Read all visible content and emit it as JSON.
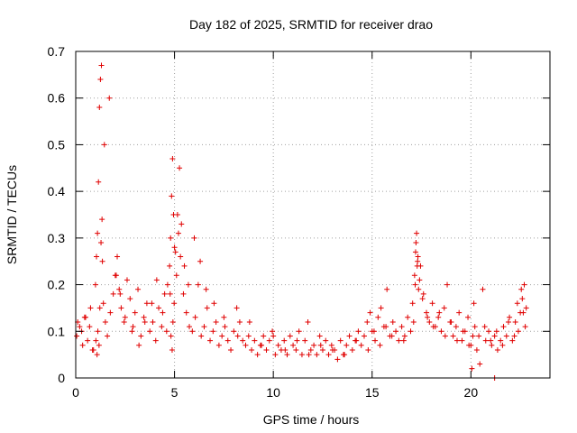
{
  "chart_data": {
    "type": "scatter",
    "title": "Day 182 of 2025, SRMTID for receiver drao",
    "xlabel": "GPS time / hours",
    "ylabel": "SRMTID / TECUs",
    "xlim": [
      0,
      24
    ],
    "ylim": [
      0,
      0.7
    ],
    "xticks": [
      0,
      5,
      10,
      15,
      20
    ],
    "yticks": [
      0,
      0.1,
      0.2,
      0.3,
      0.4,
      0.5,
      0.6,
      0.7
    ],
    "xtick_labels": [
      "0",
      "5",
      "10",
      "15",
      "20"
    ],
    "ytick_labels": [
      "0",
      "0.1",
      "0.2",
      "0.3",
      "0.4",
      "0.5",
      "0.6",
      "0.7"
    ],
    "grid": true,
    "marker": "+",
    "color": "#e00000",
    "series": [
      {
        "name": "SRMTID",
        "x": [
          0.05,
          0.2,
          0.35,
          0.5,
          0.6,
          0.75,
          0.9,
          1.0,
          1.05,
          1.1,
          1.15,
          1.2,
          1.25,
          1.3,
          1.35,
          1.4,
          1.5,
          1.6,
          1.75,
          1.9,
          2.0,
          2.1,
          2.2,
          2.3,
          2.45,
          2.6,
          2.75,
          2.9,
          3.0,
          3.15,
          3.3,
          3.45,
          3.6,
          3.75,
          3.9,
          4.05,
          4.2,
          4.35,
          4.5,
          4.65,
          4.75,
          4.8,
          4.85,
          4.9,
          4.95,
          5.0,
          5.1,
          5.2,
          5.3,
          5.45,
          5.6,
          5.75,
          5.9,
          6.05,
          6.2,
          6.35,
          6.5,
          6.65,
          6.8,
          6.95,
          7.1,
          7.25,
          7.4,
          7.55,
          7.7,
          7.85,
          8.0,
          8.15,
          8.3,
          8.45,
          8.6,
          8.75,
          8.9,
          9.05,
          9.2,
          9.35,
          9.5,
          9.65,
          9.8,
          9.95,
          10.1,
          10.25,
          10.4,
          10.55,
          10.7,
          10.85,
          11.0,
          11.15,
          11.3,
          11.45,
          11.6,
          11.75,
          11.9,
          12.05,
          12.2,
          12.35,
          12.5,
          12.65,
          12.8,
          12.95,
          13.1,
          13.25,
          13.4,
          13.55,
          13.7,
          13.85,
          14.0,
          14.15,
          14.3,
          14.45,
          14.6,
          14.75,
          14.9,
          15.0,
          15.15,
          15.3,
          15.45,
          15.6,
          15.75,
          15.9,
          16.05,
          16.2,
          16.35,
          16.5,
          16.65,
          16.8,
          16.95,
          17.05,
          17.15,
          17.2,
          17.25,
          17.3,
          17.35,
          17.45,
          17.6,
          17.75,
          17.9,
          18.05,
          18.2,
          18.35,
          18.5,
          18.65,
          18.8,
          18.95,
          19.1,
          19.25,
          19.4,
          19.55,
          19.7,
          19.85,
          20.0,
          20.1,
          20.2,
          20.3,
          20.45,
          20.6,
          20.75,
          20.9,
          21.05,
          21.2,
          21.35,
          21.5,
          21.65,
          21.8,
          21.95,
          22.1,
          22.25,
          22.4,
          22.5,
          22.6,
          22.7,
          22.8,
          0.1,
          0.3,
          0.45,
          0.7,
          0.85,
          1.02,
          1.08,
          1.12,
          1.18,
          1.22,
          1.28,
          1.33,
          1.45,
          1.7,
          2.05,
          2.25,
          2.5,
          2.85,
          3.2,
          3.5,
          3.85,
          4.1,
          4.4,
          4.6,
          4.78,
          4.82,
          4.88,
          4.92,
          4.98,
          5.05,
          5.15,
          5.25,
          5.35,
          5.5,
          5.7,
          6.0,
          6.3,
          6.6,
          7.0,
          7.5,
          8.2,
          8.8,
          9.4,
          10.0,
          10.6,
          11.2,
          11.8,
          12.4,
          13.0,
          13.6,
          14.2,
          14.8,
          15.1,
          15.4,
          15.7,
          16.0,
          16.6,
          17.1,
          17.18,
          17.22,
          17.28,
          17.32,
          17.4,
          17.55,
          17.8,
          18.1,
          18.4,
          18.7,
          19.0,
          19.3,
          19.6,
          19.9,
          20.05,
          20.15,
          20.4,
          20.7,
          21.0,
          21.2,
          21.3,
          21.6,
          21.9,
          22.2,
          22.35,
          22.55,
          22.65,
          22.75
        ],
        "y": [
          0.09,
          0.11,
          0.07,
          0.13,
          0.08,
          0.15,
          0.06,
          0.2,
          0.26,
          0.31,
          0.42,
          0.58,
          0.64,
          0.67,
          0.25,
          0.16,
          0.12,
          0.09,
          0.14,
          0.18,
          0.22,
          0.26,
          0.19,
          0.15,
          0.12,
          0.21,
          0.17,
          0.11,
          0.14,
          0.19,
          0.09,
          0.13,
          0.16,
          0.1,
          0.12,
          0.08,
          0.15,
          0.11,
          0.18,
          0.2,
          0.24,
          0.3,
          0.39,
          0.47,
          0.35,
          0.28,
          0.22,
          0.31,
          0.26,
          0.18,
          0.14,
          0.11,
          0.1,
          0.13,
          0.2,
          0.09,
          0.11,
          0.15,
          0.08,
          0.1,
          0.12,
          0.07,
          0.09,
          0.11,
          0.08,
          0.06,
          0.1,
          0.15,
          0.12,
          0.08,
          0.07,
          0.09,
          0.06,
          0.08,
          0.05,
          0.07,
          0.09,
          0.06,
          0.08,
          0.1,
          0.05,
          0.07,
          0.06,
          0.08,
          0.05,
          0.09,
          0.07,
          0.06,
          0.1,
          0.05,
          0.08,
          0.12,
          0.06,
          0.07,
          0.05,
          0.09,
          0.06,
          0.08,
          0.05,
          0.07,
          0.06,
          0.04,
          0.08,
          0.05,
          0.07,
          0.09,
          0.06,
          0.08,
          0.1,
          0.07,
          0.09,
          0.12,
          0.14,
          0.1,
          0.08,
          0.13,
          0.15,
          0.11,
          0.19,
          0.09,
          0.12,
          0.1,
          0.08,
          0.11,
          0.09,
          0.13,
          0.1,
          0.16,
          0.22,
          0.27,
          0.31,
          0.25,
          0.19,
          0.24,
          0.18,
          0.14,
          0.12,
          0.16,
          0.11,
          0.13,
          0.1,
          0.15,
          0.2,
          0.12,
          0.09,
          0.11,
          0.14,
          0.08,
          0.1,
          0.13,
          0.07,
          0.09,
          0.11,
          0.06,
          0.03,
          0.19,
          0.08,
          0.1,
          0.07,
          0.09,
          0.06,
          0.08,
          0.11,
          0.09,
          0.13,
          0.08,
          0.12,
          0.1,
          0.14,
          0.17,
          0.2,
          0.15,
          0.12,
          0.1,
          0.13,
          0.11,
          0.06,
          0.08,
          0.05,
          0.1,
          0.07,
          0.15,
          0.29,
          0.34,
          0.5,
          0.6,
          0.22,
          0.18,
          0.13,
          0.1,
          0.07,
          0.12,
          0.16,
          0.21,
          0.14,
          0.1,
          0.18,
          0.09,
          0.06,
          0.12,
          0.16,
          0.27,
          0.35,
          0.45,
          0.33,
          0.24,
          0.2,
          0.3,
          0.25,
          0.19,
          0.16,
          0.13,
          0.09,
          0.12,
          0.07,
          0.09,
          0.06,
          0.08,
          0.05,
          0.07,
          0.06,
          0.05,
          0.08,
          0.06,
          0.1,
          0.07,
          0.11,
          0.09,
          0.08,
          0.12,
          0.2,
          0.29,
          0.24,
          0.26,
          0.21,
          0.17,
          0.13,
          0.11,
          0.14,
          0.09,
          0.12,
          0.08,
          0.1,
          0.07,
          0.02,
          0.16,
          0.09,
          0.11,
          0.08,
          0.0,
          0.1,
          0.07,
          0.12,
          0.09,
          0.16,
          0.19,
          0.14,
          0.11
        ]
      }
    ]
  }
}
